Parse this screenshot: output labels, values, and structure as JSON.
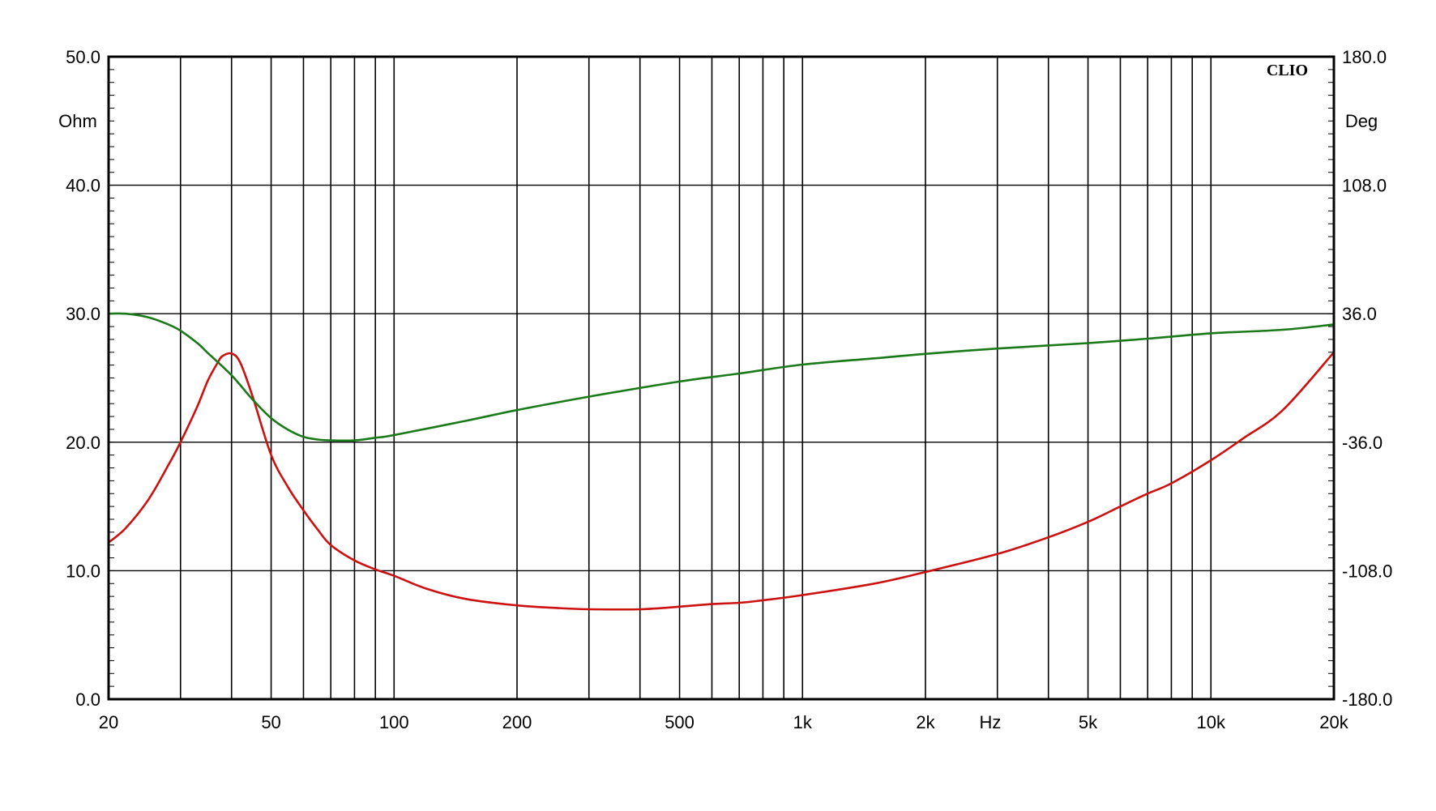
{
  "chart_data": {
    "type": "line",
    "brand": "CLIO",
    "x_axis": {
      "label": "Hz",
      "scale": "log",
      "range": [
        20,
        20000
      ],
      "ticks": [
        {
          "value": 20,
          "label": "20"
        },
        {
          "value": 50,
          "label": "50"
        },
        {
          "value": 100,
          "label": "100"
        },
        {
          "value": 200,
          "label": "200"
        },
        {
          "value": 500,
          "label": "500"
        },
        {
          "value": 1000,
          "label": "1k"
        },
        {
          "value": 2000,
          "label": "2k"
        },
        {
          "value": 5000,
          "label": "5k"
        },
        {
          "value": 10000,
          "label": "10k"
        },
        {
          "value": 20000,
          "label": "20k"
        }
      ],
      "grid_values": [
        30,
        40,
        50,
        60,
        70,
        80,
        90,
        100,
        200,
        300,
        400,
        500,
        600,
        700,
        800,
        900,
        1000,
        2000,
        3000,
        4000,
        5000,
        6000,
        7000,
        8000,
        9000,
        10000
      ]
    },
    "y_left": {
      "unit": "Ohm",
      "range": [
        0,
        50
      ],
      "ticks": [
        "0.0",
        "10.0",
        "20.0",
        "30.0",
        "40.0",
        "50.0"
      ]
    },
    "y_right": {
      "unit": "Deg",
      "range": [
        -180,
        180
      ],
      "ticks": [
        "-180.0",
        "-108.0",
        "-36.0",
        "36.0",
        "108.0",
        "180.0"
      ]
    },
    "grid": true,
    "series": [
      {
        "axis": "left",
        "color": "#cc1111",
        "x": [
          20,
          22,
          25,
          28,
          30,
          33,
          35,
          37,
          38,
          40,
          42,
          45,
          50,
          55,
          60,
          65,
          70,
          80,
          90,
          100,
          120,
          150,
          200,
          250,
          300,
          400,
          500,
          600,
          700,
          800,
          1000,
          1500,
          2000,
          3000,
          4000,
          5000,
          6000,
          7000,
          8000,
          10000,
          12000,
          15000,
          20000
        ],
        "y": [
          12.2,
          13.3,
          15.5,
          18.2,
          20.0,
          22.8,
          24.8,
          26.2,
          26.7,
          26.9,
          26.2,
          23.6,
          19.0,
          16.5,
          14.7,
          13.2,
          12.0,
          10.8,
          10.1,
          9.6,
          8.6,
          7.8,
          7.3,
          7.1,
          7.0,
          7.0,
          7.2,
          7.4,
          7.5,
          7.7,
          8.1,
          9.0,
          9.9,
          11.3,
          12.6,
          13.8,
          15.0,
          16.0,
          16.8,
          18.6,
          20.3,
          22.5,
          27.0
        ]
      },
      {
        "axis": "right",
        "color": "#1a7a1a",
        "x": [
          20,
          22,
          25,
          28,
          30,
          33,
          35,
          40,
          45,
          50,
          55,
          60,
          65,
          70,
          80,
          90,
          100,
          150,
          200,
          300,
          500,
          700,
          1000,
          1500,
          2000,
          3000,
          5000,
          7000,
          10000,
          15000,
          20000
        ],
        "y": [
          36.0,
          36.0,
          34.0,
          30.0,
          26.5,
          19.5,
          14.0,
          1.5,
          -12.0,
          -22.5,
          -29.0,
          -33.0,
          -34.5,
          -35.0,
          -35.0,
          -33.5,
          -32.0,
          -24.0,
          -18.0,
          -10.5,
          -2.0,
          2.5,
          7.5,
          11.0,
          13.5,
          16.5,
          19.5,
          22.0,
          25.0,
          27.0,
          30.0
        ]
      }
    ]
  }
}
